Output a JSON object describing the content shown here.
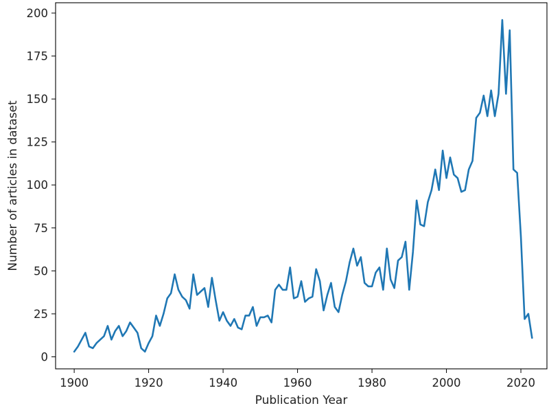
{
  "chart_data": {
    "type": "line",
    "title": "",
    "xlabel": "Publication Year",
    "ylabel": "Number of articles in dataset",
    "xlim": [
      1895,
      2027
    ],
    "ylim": [
      -7,
      206
    ],
    "xticks": [
      1900,
      1920,
      1940,
      1960,
      1980,
      2000,
      2020
    ],
    "yticks": [
      0,
      25,
      50,
      75,
      100,
      125,
      150,
      175,
      200
    ],
    "grid": false,
    "legend": "none",
    "series": [
      {
        "color": "#1f77b4",
        "x": [
          1900,
          1901,
          1902,
          1903,
          1904,
          1905,
          1906,
          1907,
          1908,
          1909,
          1910,
          1911,
          1912,
          1913,
          1914,
          1915,
          1916,
          1917,
          1918,
          1919,
          1920,
          1921,
          1922,
          1923,
          1924,
          1925,
          1926,
          1927,
          1928,
          1929,
          1930,
          1931,
          1932,
          1933,
          1934,
          1935,
          1936,
          1937,
          1938,
          1939,
          1940,
          1941,
          1942,
          1943,
          1944,
          1945,
          1946,
          1947,
          1948,
          1949,
          1950,
          1951,
          1952,
          1953,
          1954,
          1955,
          1956,
          1957,
          1958,
          1959,
          1960,
          1961,
          1962,
          1963,
          1964,
          1965,
          1966,
          1967,
          1968,
          1969,
          1970,
          1971,
          1972,
          1973,
          1974,
          1975,
          1976,
          1977,
          1978,
          1979,
          1980,
          1981,
          1982,
          1983,
          1984,
          1985,
          1986,
          1987,
          1988,
          1989,
          1990,
          1991,
          1992,
          1993,
          1994,
          1995,
          1996,
          1997,
          1998,
          1999,
          2000,
          2001,
          2002,
          2003,
          2004,
          2005,
          2006,
          2007,
          2008,
          2009,
          2010,
          2011,
          2012,
          2013,
          2014,
          2015,
          2016,
          2017,
          2018,
          2019,
          2020,
          2021,
          2022,
          2023
        ],
        "y": [
          3,
          6,
          10,
          14,
          6,
          5,
          8,
          10,
          12,
          18,
          10,
          15,
          18,
          12,
          15,
          20,
          17,
          14,
          5,
          3,
          8,
          12,
          24,
          18,
          25,
          34,
          37,
          48,
          39,
          35,
          33,
          28,
          48,
          36,
          38,
          40,
          29,
          46,
          33,
          21,
          26,
          21,
          18,
          22,
          17,
          16,
          24,
          24,
          29,
          18,
          23,
          23,
          24,
          20,
          39,
          42,
          39,
          39,
          52,
          34,
          35,
          44,
          32,
          34,
          35,
          51,
          44,
          27,
          36,
          43,
          29,
          26,
          36,
          44,
          55,
          63,
          53,
          58,
          43,
          41,
          41,
          49,
          52,
          39,
          63,
          45,
          40,
          56,
          58,
          67,
          39,
          61,
          91,
          77,
          76,
          90,
          97,
          109,
          97,
          120,
          104,
          116,
          106,
          104,
          96,
          97,
          109,
          114,
          139,
          142,
          152,
          140,
          155,
          140,
          153,
          196,
          153,
          190,
          109,
          107,
          70,
          22,
          25,
          11
        ]
      }
    ]
  }
}
